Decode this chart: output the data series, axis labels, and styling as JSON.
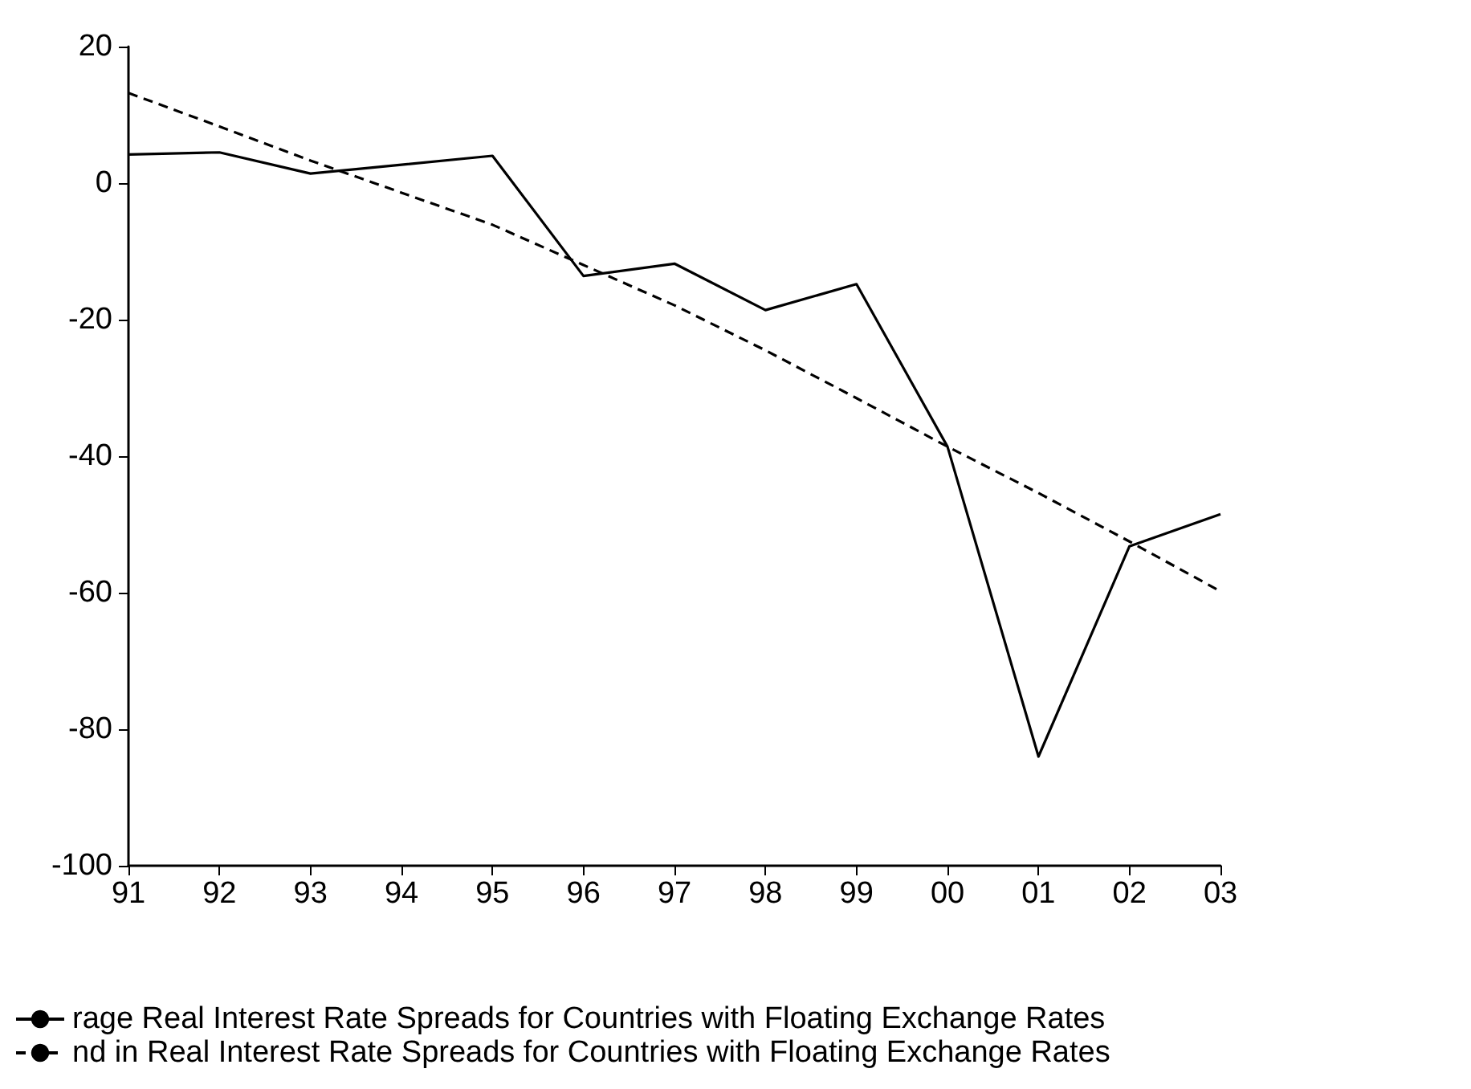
{
  "chart_data": {
    "type": "line",
    "categories": [
      "91",
      "92",
      "93",
      "94",
      "95",
      "96",
      "97",
      "98",
      "99",
      "00",
      "01",
      "02",
      "03"
    ],
    "series": [
      {
        "name": "rage Real Interest Rate Spreads for Countries with Floating Exchange Rates",
        "color": "#000000",
        "line_style": "solid",
        "values": [
          4.2,
          4.5,
          1.4,
          2.7,
          4,
          -13.6,
          -11.8,
          -18.6,
          -14.8,
          -38.6,
          -84,
          -53.2,
          -48.5
        ]
      },
      {
        "name": "nd in Real Interest Rate Spreads for Countries with Floating Exchange Rates",
        "color": "#000000",
        "line_style": "dashed",
        "values": [
          13.2,
          8.3,
          3.3,
          -1.4,
          -6.1,
          -12,
          -17.9,
          -24.5,
          -31.5,
          -38.6,
          -45.4,
          -52.5,
          -59.8
        ]
      }
    ],
    "ylim": [
      -100,
      20
    ],
    "yticks": [
      -100,
      -80,
      -60,
      -40,
      -20,
      0,
      20
    ],
    "grid": false,
    "legend": "bottom",
    "marker": "none"
  }
}
